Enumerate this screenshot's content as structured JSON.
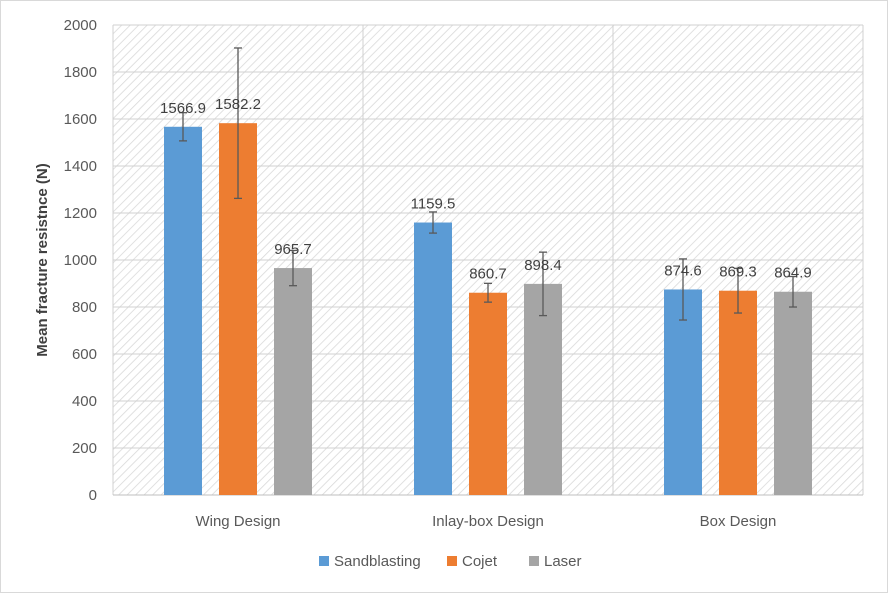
{
  "chart_data": {
    "type": "bar",
    "title": "",
    "xlabel": "",
    "ylabel": "Mean fracture resistnce (N)",
    "ylim": [
      0,
      2000
    ],
    "yticks": [
      0,
      200,
      400,
      600,
      800,
      1000,
      1200,
      1400,
      1600,
      1800,
      2000
    ],
    "categories": [
      "Wing Design",
      "Inlay-box Design",
      "Box Design"
    ],
    "series": [
      {
        "name": "Sandblasting",
        "color": "#5B9BD5",
        "values": [
          1566.9,
          1159.5,
          874.6
        ],
        "labels": [
          "1566.9",
          "1159.5",
          "874.6"
        ],
        "error": [
          60,
          45,
          130
        ]
      },
      {
        "name": "Cojet",
        "color": "#ED7D31",
        "values": [
          1582.2,
          860.7,
          869.3
        ],
        "labels": [
          "1582.2",
          "860.7",
          "869.3"
        ],
        "error": [
          320,
          40,
          95
        ]
      },
      {
        "name": "Laser",
        "color": "#A5A5A5",
        "values": [
          965.7,
          898.4,
          864.9
        ],
        "labels": [
          "965.7",
          "898.4",
          "864.9"
        ],
        "error": [
          75,
          135,
          65
        ]
      }
    ],
    "grid": true,
    "legend_position": "bottom"
  }
}
